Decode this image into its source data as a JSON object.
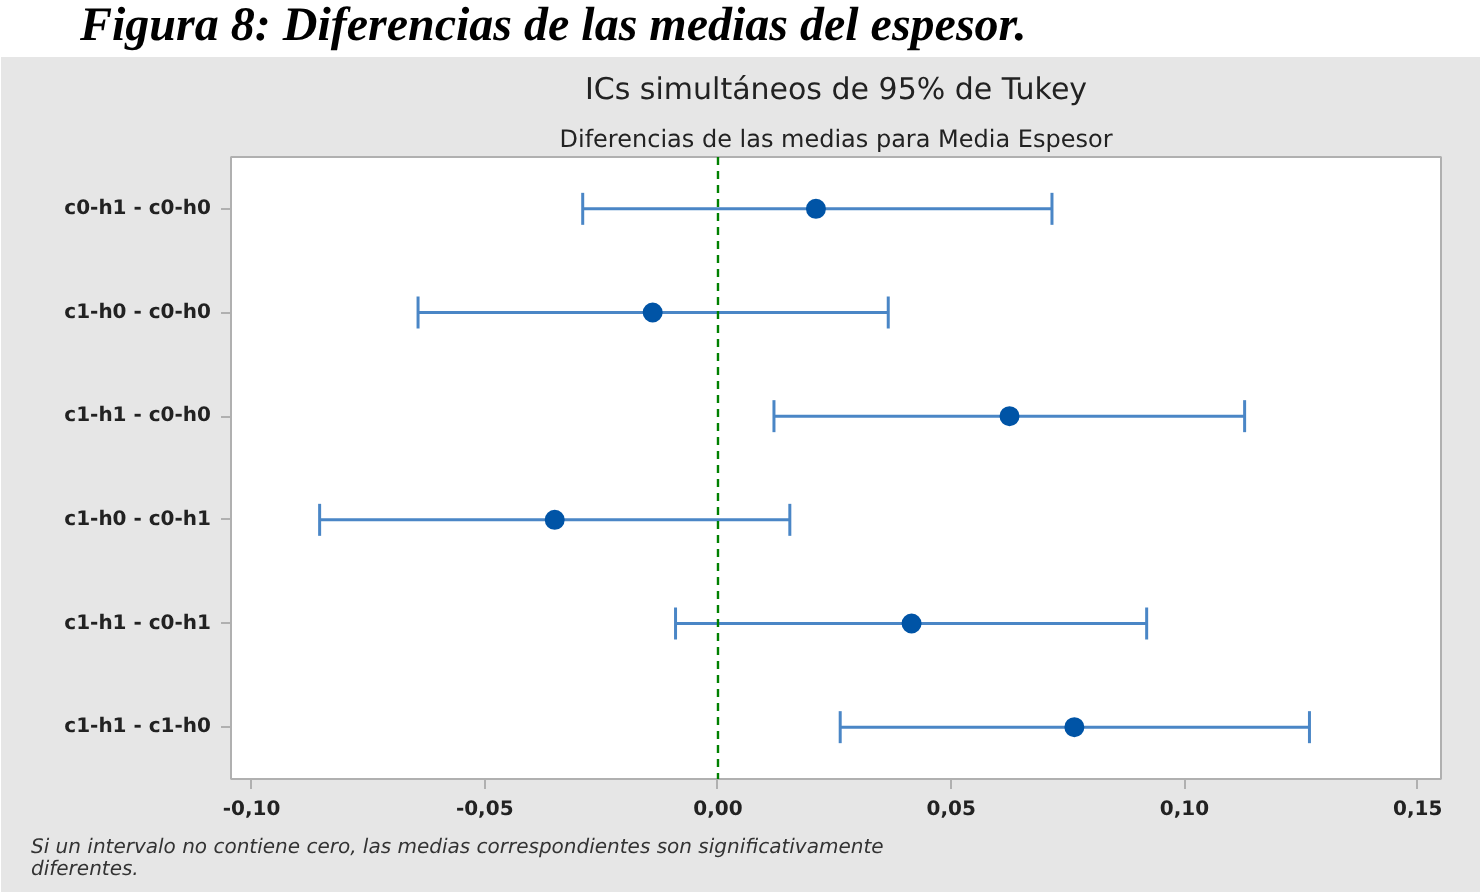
{
  "chart_data": {
    "type": "scatter",
    "orientation": "horizontal",
    "title": "ICs simultáneos de 95% de Tukey",
    "subtitle": "Diferencias de las medias para Media Espesor",
    "annotations": [
      "Figura 8: Diferencias de las medias del espesor.",
      "Si un intervalo no contiene cero, las medias correspondientes son significativamente\ndiferentes."
    ],
    "categories": [
      "c0-h1 - c0-h0",
      "c1-h0 - c0-h0",
      "c1-h1 - c0-h0",
      "c1-h0 - c0-h1",
      "c1-h1 - c0-h1",
      "c1-h1 - c1-h0"
    ],
    "series": [
      {
        "color": "#0054a6",
        "values": [
          0.021,
          -0.014,
          0.0625,
          -0.035,
          0.0415,
          0.0764
        ],
        "errors": [
          [
            -0.029,
            0.0716
          ],
          [
            -0.0643,
            0.0365
          ],
          [
            0.012,
            0.1129
          ],
          [
            -0.0854,
            0.0154
          ],
          [
            -0.0091,
            0.0919
          ],
          [
            0.0262,
            0.1268
          ]
        ]
      }
    ],
    "marker": "circle",
    "xlim": [
      -0.1044,
      0.155
    ],
    "xticks": [
      {
        "value": -0.1,
        "label": "-0,10"
      },
      {
        "value": -0.05,
        "label": "-0,05"
      },
      {
        "value": 0,
        "label": "0,00"
      },
      {
        "value": 0.05,
        "label": "0,05"
      },
      {
        "value": 0.1,
        "label": "0,10"
      },
      {
        "value": 0.15,
        "label": "0,15"
      }
    ],
    "ref_lines": [
      {
        "axis": "x",
        "value": 0,
        "color": "#008000",
        "line_style": "dashed"
      }
    ],
    "grid": false
  }
}
